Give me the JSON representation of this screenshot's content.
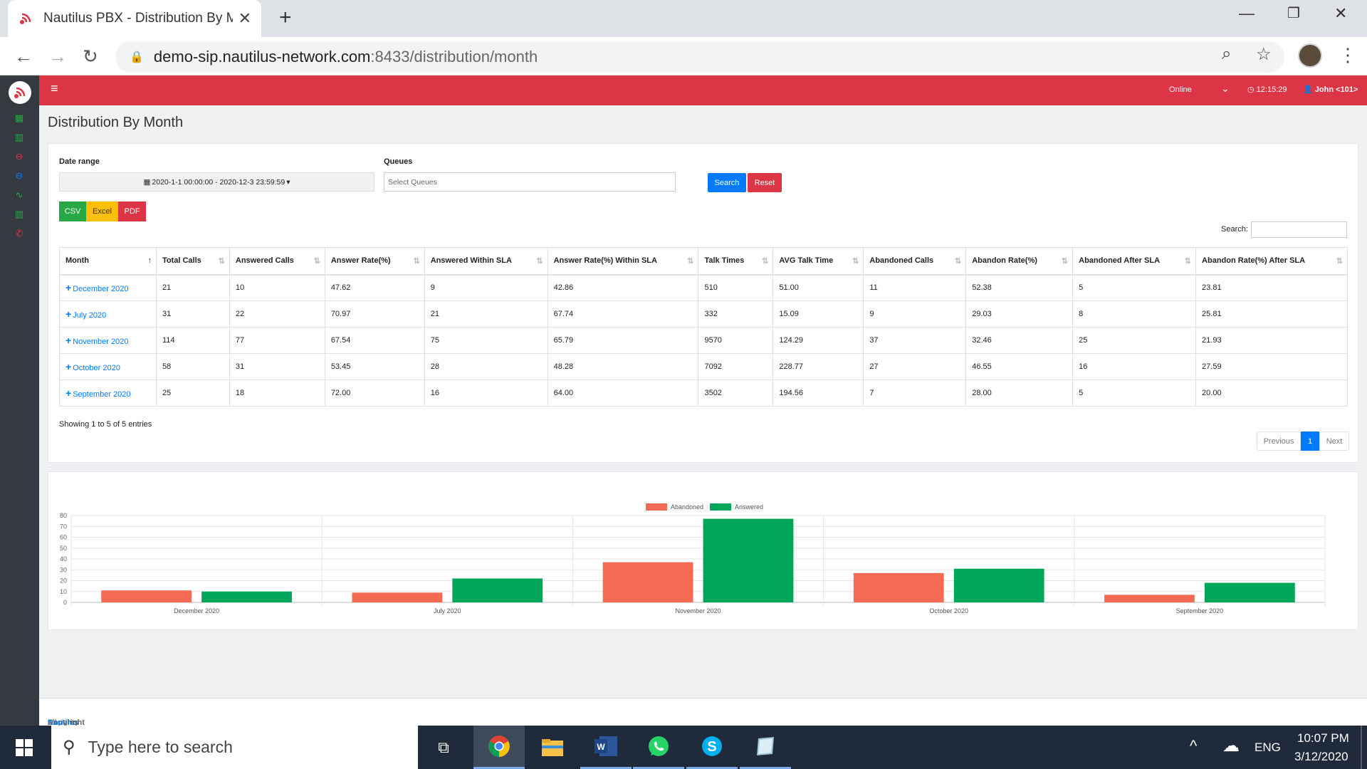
{
  "browser": {
    "tab_title": "Nautilus PBX - Distribution By Month",
    "url_host": "demo-sip.nautilus-network.com",
    "url_path": ":8433/distribution/month"
  },
  "app": {
    "status": "Online",
    "clock": "12:15:29",
    "user": "John <101>",
    "page_title": "Distribution By Month"
  },
  "filters": {
    "date_range_label": "Date range",
    "date_range_value": "2020-1-1 00:00:00 - 2020-12-3 23:59:59",
    "queues_label": "Queues",
    "queues_placeholder": "Select Queues",
    "search_button": "Search",
    "reset_button": "Reset"
  },
  "export": {
    "csv": "CSV",
    "excel": "Excel",
    "pdf": "PDF"
  },
  "table": {
    "search_label": "Search:",
    "columns": [
      "Month",
      "Total Calls",
      "Answered Calls",
      "Answer Rate(%)",
      "Answered Within SLA",
      "Answer Rate(%) Within SLA",
      "Talk Times",
      "AVG Talk Time",
      "Abandoned Calls",
      "Abandon Rate(%)",
      "Abandoned After SLA",
      "Abandon Rate(%) After SLA"
    ],
    "rows": [
      [
        "December 2020",
        "21",
        "10",
        "47.62",
        "9",
        "42.86",
        "510",
        "51.00",
        "11",
        "52.38",
        "5",
        "23.81"
      ],
      [
        "July 2020",
        "31",
        "22",
        "70.97",
        "21",
        "67.74",
        "332",
        "15.09",
        "9",
        "29.03",
        "8",
        "25.81"
      ],
      [
        "November 2020",
        "114",
        "77",
        "67.54",
        "75",
        "65.79",
        "9570",
        "124.29",
        "37",
        "32.46",
        "25",
        "21.93"
      ],
      [
        "October 2020",
        "58",
        "31",
        "53.45",
        "28",
        "48.28",
        "7092",
        "228.77",
        "27",
        "46.55",
        "16",
        "27.59"
      ],
      [
        "September 2020",
        "25",
        "18",
        "72.00",
        "16",
        "64.00",
        "3502",
        "194.56",
        "7",
        "28.00",
        "5",
        "20.00"
      ]
    ],
    "info": "Showing 1 to 5 of 5 entries",
    "pagination": {
      "previous": "Previous",
      "current": "1",
      "next": "Next"
    }
  },
  "chart_data": {
    "type": "bar",
    "categories": [
      "December 2020",
      "July 2020",
      "November 2020",
      "October 2020",
      "September 2020"
    ],
    "series": [
      {
        "name": "Abandoned",
        "color": "#f46a52",
        "values": [
          11,
          9,
          37,
          27,
          7
        ]
      },
      {
        "name": "Answered",
        "color": "#00a65a",
        "values": [
          10,
          22,
          77,
          31,
          18
        ]
      }
    ],
    "y_ticks": [
      "0",
      "10",
      "20",
      "30",
      "40",
      "50",
      "60",
      "70",
      "80"
    ],
    "ylim": [
      0,
      80
    ],
    "legend": "top-center",
    "grid": true
  },
  "footer": {
    "prefix": "Copyright © 2020 ",
    "company": "Nautilus SIP Pte Ltd.",
    "suffix": " All rights reserved."
  },
  "taskbar": {
    "search_placeholder": "Type here to search",
    "language": "ENG",
    "time": "10:07 PM",
    "date": "3/12/2020"
  }
}
